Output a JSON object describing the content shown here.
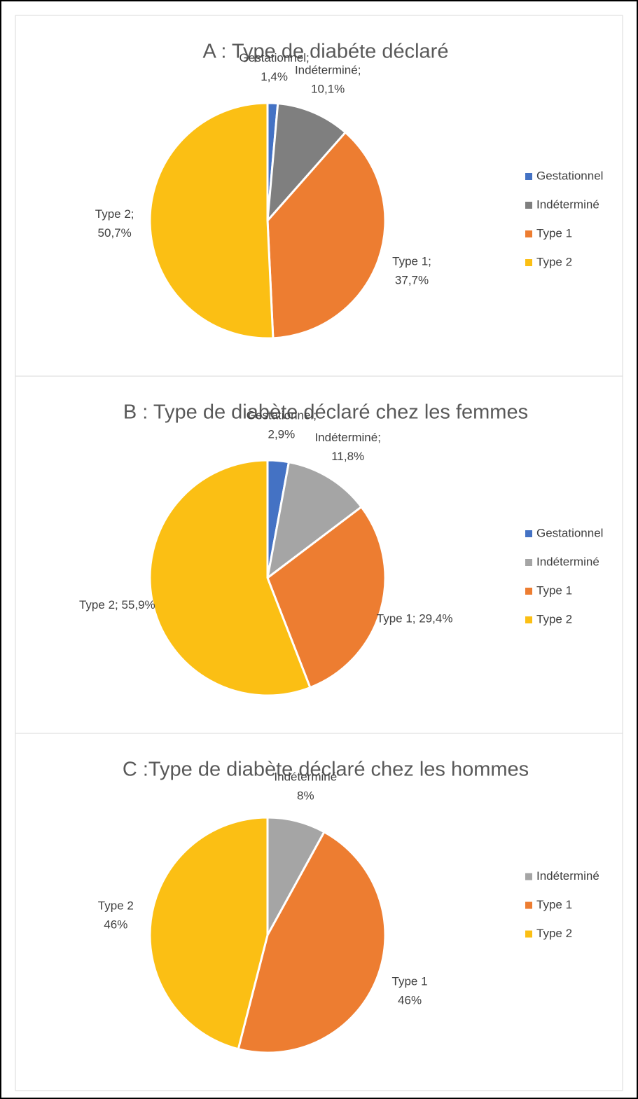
{
  "chart_data": [
    {
      "type": "pie",
      "title": "A : Type de diabéte déclaré",
      "categories": [
        "Gestationnel",
        "Indéterminé",
        "Type 1",
        "Type 2"
      ],
      "values": [
        1.4,
        10.1,
        37.7,
        50.7
      ],
      "value_labels": [
        [
          "Gestationnel;",
          "1,4%"
        ],
        [
          "Indéterminé;",
          "10,1%"
        ],
        [
          "Type 1;",
          "37,7%"
        ],
        [
          "Type 2;",
          "50,7%"
        ]
      ],
      "colors": [
        "#4472c4",
        "#7f7f7f",
        "#ed7d31",
        "#fbbf14"
      ]
    },
    {
      "type": "pie",
      "title": "B : Type de diabète déclaré chez les femmes",
      "categories": [
        "Gestationnel",
        "Indéterminé",
        "Type 1",
        "Type 2"
      ],
      "values": [
        2.9,
        11.8,
        29.4,
        55.9
      ],
      "value_labels": [
        [
          "Gestationnel;",
          "2,9%"
        ],
        [
          "Indéterminé;",
          "11,8%"
        ],
        [
          "Type 1; 29,4%"
        ],
        [
          "Type 2; 55,9%"
        ]
      ],
      "colors": [
        "#4472c4",
        "#a5a5a5",
        "#ed7d31",
        "#fbbf14"
      ]
    },
    {
      "type": "pie",
      "title": "C :Type de diabète déclaré chez les hommes",
      "categories": [
        "Indéterminé",
        "Type 1",
        "Type 2"
      ],
      "values": [
        8,
        46,
        46
      ],
      "value_labels": [
        [
          "Indéterminé",
          "8%"
        ],
        [
          "Type 1",
          "46%"
        ],
        [
          "Type 2",
          "46%"
        ]
      ],
      "colors": [
        "#a5a5a5",
        "#ed7d31",
        "#fbbf14"
      ]
    }
  ]
}
